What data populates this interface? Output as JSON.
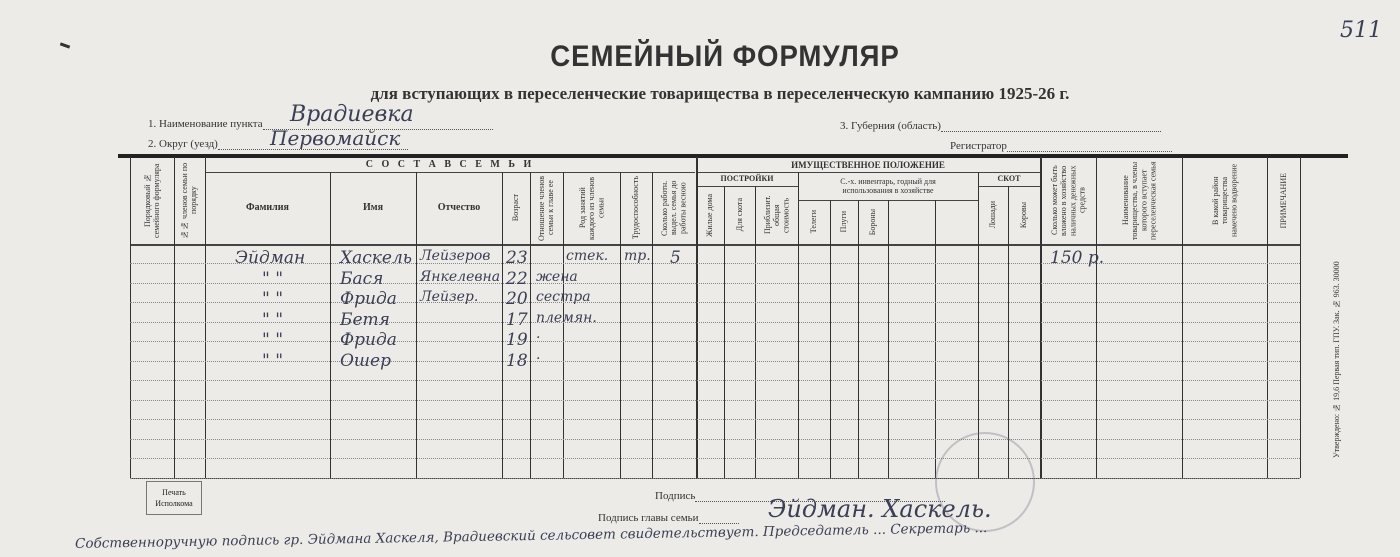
{
  "page_number": "511",
  "title": "СЕМЕЙНЫЙ ФОРМУЛЯР",
  "subtitle": "для вступающих в переселенческие товарищества в переселенческую кампанию 1925-26 г.",
  "fields": {
    "settlement_label": "1. Наименование пункта",
    "settlement_value": "Врадиевка",
    "district_label": "2. Округ (уезд)",
    "district_value": "Первомайск",
    "province_label": "3. Губерния (область)",
    "registrar_label": "Регистратор"
  },
  "table": {
    "group_family": "С О С Т А В   С Е М Ь И",
    "group_property": "ИМУЩЕСТВЕННОЕ ПОЛОЖЕНИЕ",
    "group_buildings": "ПОСТРОЙКИ",
    "group_inventory": "С.-х. инвентарь, годный для использования в хозяйстве",
    "group_livestock": "СКОТ",
    "columns": [
      "Порядковый № семейного формуляра",
      "№№ членов семьи по порядку",
      "Фамилия",
      "Имя",
      "Отчество",
      "Возраст",
      "Отношение членов семьи к главе ее",
      "Род занятий каждого из членов семьи",
      "Трудоспособность",
      "Сколько работн. выдел. семья до работы весною",
      "Жилые дома",
      "Для скота",
      "Приблизит. общая стоимость",
      "Телеги",
      "Плуги",
      "Бороны",
      "",
      "",
      "Лошади",
      "Коровы",
      "Сколько может быть вложено в хозяйство наличных денежных средств",
      "Наименование товарищества, в члены которого вступает переселенческая семья",
      "В какой район товарищества намечено водворение",
      "ПРИМЕЧАНИЕ"
    ],
    "rows": [
      {
        "surname": "Эйдман",
        "name": "Хаскель",
        "patronymic": "Лейзеров",
        "age": "23",
        "relation": "",
        "occupation": "стек.",
        "ability": "тр.",
        "workers": "5",
        "money": "150 р."
      },
      {
        "surname": "\"   \"",
        "name": "Бася",
        "patronymic": "Янкелевна",
        "age": "22",
        "relation": "жена"
      },
      {
        "surname": "\"   \"",
        "name": "Фрида",
        "patronymic": "Лейзер.",
        "age": "20",
        "relation": "сестра"
      },
      {
        "surname": "\"   \"",
        "name": "Бетя",
        "patronymic": "",
        "age": "17",
        "relation": "племян."
      },
      {
        "surname": "\"   \"",
        "name": "Фрида",
        "patronymic": "",
        "age": "19",
        "relation": "·"
      },
      {
        "surname": "\"   \"",
        "name": "Ошер",
        "patronymic": "",
        "age": "18",
        "relation": "·"
      }
    ]
  },
  "footer": {
    "stamp_box": "Печать Исполкома",
    "signature_label": "Подпись",
    "head_signature_label": "Подпись главы семьи",
    "head_signature_value": "Эйдман. Хаскель.",
    "certification": "Собственноручную подпись гр. Эйдмана Хаскеля, Врадиевский сельсовет свидетельствует. Председатель ... Секретарь ...",
    "printer_note": "Утверждено: № 19,6 Первая тип. ГПУ. Зак. № 963. 30000"
  }
}
